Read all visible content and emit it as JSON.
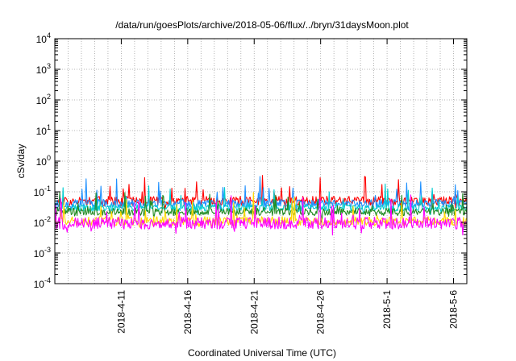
{
  "chart_data": {
    "type": "line",
    "title": "/data/run/goesPlots/archive/2018-05-06/flux/../bryn/31daysMoon.plot",
    "xlabel": "Coordinated Universal Time (UTC)",
    "ylabel": "cSv/day",
    "yscale": "log",
    "ylim": [
      0.0001,
      10000
    ],
    "xlim": [
      "2018-04-06",
      "2018-05-07"
    ],
    "grid": true,
    "y_ticks": [
      {
        "base": "10",
        "exp": "-4"
      },
      {
        "base": "10",
        "exp": "-3"
      },
      {
        "base": "10",
        "exp": "-2"
      },
      {
        "base": "10",
        "exp": "-1"
      },
      {
        "base": "10",
        "exp": "0"
      },
      {
        "base": "10",
        "exp": "1"
      },
      {
        "base": "10",
        "exp": "2"
      },
      {
        "base": "10",
        "exp": "3"
      },
      {
        "base": "10",
        "exp": "4"
      }
    ],
    "x_ticks": [
      {
        "date": "2018-04-11",
        "label": "2018-4-11"
      },
      {
        "date": "2018-04-16",
        "label": "2018-4-16"
      },
      {
        "date": "2018-04-21",
        "label": "2018-4-21"
      },
      {
        "date": "2018-04-26",
        "label": "2018-4-26"
      },
      {
        "date": "2018-05-01",
        "label": "2018-5-1"
      },
      {
        "date": "2018-05-06",
        "label": "2018-5-6"
      }
    ],
    "series": [
      {
        "color": "#ff0000",
        "base": 0.05,
        "spread": 0.35,
        "spike": 2.2,
        "seed": 11
      },
      {
        "color": "#1e90ff",
        "base": 0.042,
        "spread": 0.3,
        "spike": 2.0,
        "seed": 23
      },
      {
        "color": "#00ced1",
        "base": 0.03,
        "spread": 0.25,
        "spike": 1.7,
        "seed": 37
      },
      {
        "color": "#228b22",
        "base": 0.022,
        "spread": 0.28,
        "spike": 1.6,
        "seed": 41
      },
      {
        "color": "#ffd700",
        "base": 0.011,
        "spread": 0.35,
        "spike": 1.9,
        "seed": 53
      },
      {
        "color": "#ff00ff",
        "base": 0.0095,
        "spread": 0.45,
        "spike": 2.3,
        "seed": 67
      }
    ]
  }
}
